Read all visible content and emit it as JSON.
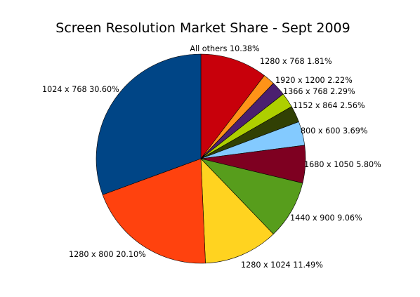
{
  "chart_data": {
    "type": "pie",
    "title": "Screen Resolution Market Share - Sept 2009",
    "slices": [
      {
        "label": "All others",
        "value": 10.38,
        "pct_text": "10.38%",
        "color": "#C8000B"
      },
      {
        "label": "1280 x 768",
        "value": 1.81,
        "pct_text": "1.81%",
        "color": "#FF9318"
      },
      {
        "label": "1920 x 1200",
        "value": 2.22,
        "pct_text": "2.22%",
        "color": "#4B1F6F"
      },
      {
        "label": "1366 x 768",
        "value": 2.29,
        "pct_text": "2.29%",
        "color": "#AECF00"
      },
      {
        "label": "1152 x 864",
        "value": 2.56,
        "pct_text": "2.56%",
        "color": "#314004"
      },
      {
        "label": "800 x 600",
        "value": 3.69,
        "pct_text": "3.69%",
        "color": "#83CAFF"
      },
      {
        "label": "1680 x 1050",
        "value": 5.8,
        "pct_text": "5.80%",
        "color": "#7E0021"
      },
      {
        "label": "1440 x 900",
        "value": 9.06,
        "pct_text": "9.06%",
        "color": "#579D1C"
      },
      {
        "label": "1280 x 1024",
        "value": 11.49,
        "pct_text": "11.49%",
        "color": "#FFD320"
      },
      {
        "label": "1280 x 800",
        "value": 20.1,
        "pct_text": "20.10%",
        "color": "#FF420E"
      },
      {
        "label": "1024 x 768",
        "value": 30.6,
        "pct_text": "30.60%",
        "color": "#004586"
      }
    ]
  }
}
